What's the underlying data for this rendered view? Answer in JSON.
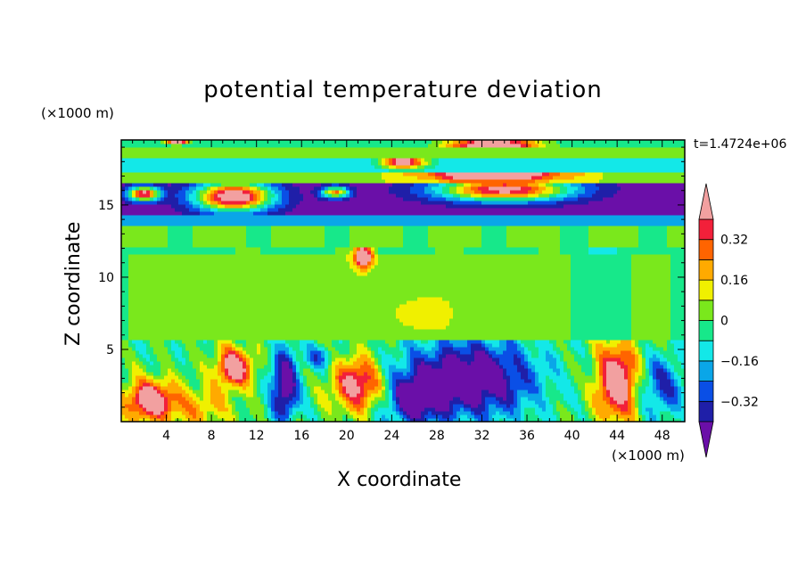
{
  "chart_data": {
    "type": "heatmap",
    "title": "potential temperature deviation",
    "xlabel": "X coordinate",
    "ylabel": "Z coordinate",
    "x_units": "(×1000 m)",
    "y_units": "(×1000 m)",
    "time_label": "t=1.4724e+06",
    "xlim": [
      0,
      50
    ],
    "ylim": [
      0,
      19.5
    ],
    "x_ticks": [
      "4",
      "8",
      "12",
      "16",
      "20",
      "24",
      "28",
      "32",
      "36",
      "40",
      "44",
      "48"
    ],
    "x_tick_values": [
      4,
      8,
      12,
      16,
      20,
      24,
      28,
      32,
      36,
      40,
      44,
      48
    ],
    "y_ticks": [
      "5",
      "10",
      "15"
    ],
    "y_tick_values": [
      5,
      10,
      15
    ],
    "colorbar": {
      "labels": [
        "0.32",
        "0.16",
        "0",
        "−0.16",
        "−0.32"
      ],
      "label_levels": [
        0.32,
        0.16,
        0,
        -0.16,
        -0.32
      ],
      "levels": [
        -0.4,
        -0.32,
        -0.24,
        -0.16,
        -0.08,
        0,
        0.08,
        0.16,
        0.24,
        0.32,
        0.4
      ],
      "colors": [
        "#6a0fa8",
        "#1f1fa8",
        "#0a4fe6",
        "#0aa6e8",
        "#13e8e8",
        "#17e88a",
        "#7ae81c",
        "#f0f000",
        "#ffaa00",
        "#ff6400",
        "#f2203a",
        "#f2a0a0"
      ],
      "under_color": "#6a0fa8",
      "over_color": "#f2a0a0"
    },
    "field_summary": [
      {
        "z_range": [
          0,
          5.5
        ],
        "description": "boundary layer: mixed warm cores near x=2,10,20,44 and strong cold regions x=24-40"
      },
      {
        "z_range": [
          5.5,
          12
        ],
        "description": "near-zero deviation, slight positive (0 to 0.08)"
      },
      {
        "z_range": [
          12,
          14
        ],
        "description": "slightly negative band"
      },
      {
        "z_range": [
          14,
          16.5
        ],
        "description": "strongly negative band with warm plumes"
      },
      {
        "z_range": [
          16.5,
          19.5
        ],
        "description": "alternating slightly negative bands with warm patches near top"
      }
    ]
  }
}
